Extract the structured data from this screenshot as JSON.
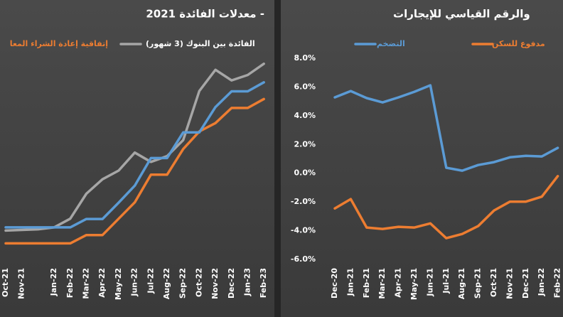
{
  "chart_data": [
    {
      "type": "line",
      "title": "معدلات الفائدة 2021 -",
      "categories": [
        "Oct-21",
        "Nov-21",
        null,
        "Jan-22",
        "Feb-22",
        "Mar-22",
        "Apr-22",
        "May-22",
        "Jun-22",
        "Jul-22",
        "Aug-22",
        "Sep-22",
        "Oct-22",
        "Nov-22",
        "Dec-22",
        "Jan-23",
        "Feb-23"
      ],
      "ylim": [
        0,
        7.2
      ],
      "series": [
        {
          "name": "الفائدة بين البنوك (3 شهور)",
          "color": "#a6a6a6",
          "values": [
            0.9,
            0.92,
            0.94,
            1.0,
            1.27,
            2.05,
            2.5,
            2.77,
            3.33,
            3.04,
            3.22,
            3.72,
            5.25,
            5.91,
            5.58,
            5.75,
            6.1
          ]
        },
        {
          "name": "إتفاقية إعادة الشراء المعا",
          "color": "#ed7d31",
          "values": [
            0.5,
            0.5,
            0.5,
            0.5,
            0.5,
            0.76,
            0.76,
            1.27,
            1.78,
            2.64,
            2.64,
            3.44,
            3.99,
            4.25,
            4.72,
            4.72,
            5.0
          ]
        },
        {
          "color": "#5b9bd5",
          "values": [
            1.0,
            1.0,
            1.0,
            1.0,
            1.0,
            1.26,
            1.26,
            1.77,
            2.3,
            3.16,
            3.16,
            3.96,
            3.96,
            4.75,
            5.24,
            5.24,
            5.52
          ]
        }
      ]
    },
    {
      "type": "line",
      "title": "والرقم القياسي للإيجارات",
      "categories": [
        "Dec-20",
        "Jan-21",
        "Feb-21",
        "Mar-21",
        "Apr-21",
        "May-21",
        "Jun-21",
        "Jul-21",
        "Aug-21",
        "Sep-21",
        "Oct-21",
        "Nov-21",
        "Dec-21",
        "Jan-22",
        "Feb-22"
      ],
      "ylim": [
        -6,
        8
      ],
      "yticks": [
        {
          "value": 8,
          "label": "8.0%"
        },
        {
          "value": 6,
          "label": "6.0%"
        },
        {
          "value": 4,
          "label": "4.0%"
        },
        {
          "value": 2,
          "label": "2.0%"
        },
        {
          "value": 0,
          "label": "0.0%"
        },
        {
          "value": -2,
          "label": "-2.0%"
        },
        {
          "value": -4,
          "label": "-4.0%"
        },
        {
          "value": -6,
          "label": "-6.0%"
        }
      ],
      "series": [
        {
          "name": "التضخم",
          "color": "#5b9bd5",
          "values": [
            5.28,
            5.72,
            5.23,
            4.93,
            5.28,
            5.67,
            6.12,
            0.38,
            0.18,
            0.57,
            0.77,
            1.11,
            1.21,
            1.17,
            1.76
          ]
        },
        {
          "name": "مدفوع للسكن",
          "color": "#ed7d31",
          "values": [
            -2.45,
            -1.8,
            -3.78,
            -3.88,
            -3.73,
            -3.78,
            -3.49,
            -4.52,
            -4.23,
            -3.68,
            -2.59,
            -1.98,
            -1.98,
            -1.63,
            -0.2
          ]
        }
      ]
    }
  ]
}
